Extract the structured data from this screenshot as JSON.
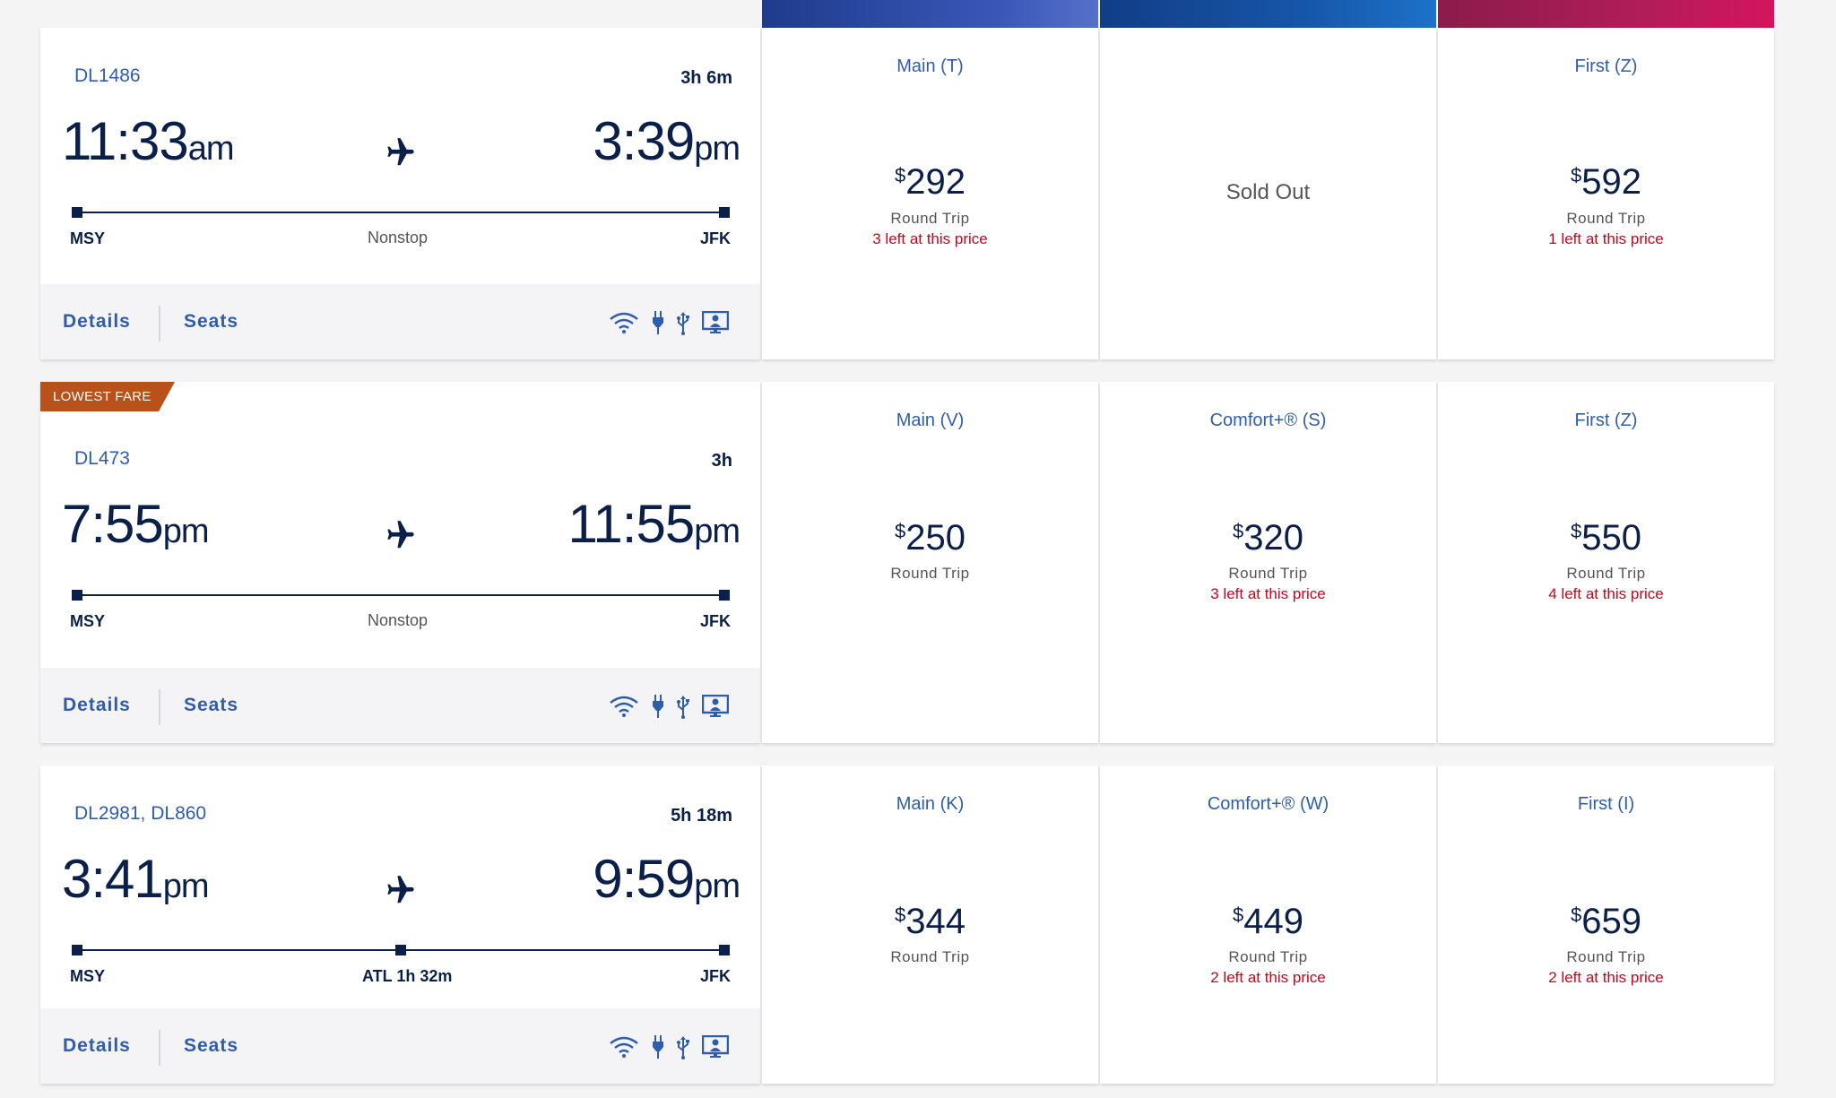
{
  "flights": [
    {
      "flight_number": "DL1486",
      "duration": "3h 6m",
      "depart_time": "11:33",
      "depart_ampm": "am",
      "arrive_time": "3:39",
      "arrive_ampm": "pm",
      "origin": "MSY",
      "destination": "JFK",
      "stop_label": "Nonstop",
      "badge": "",
      "details_label": "Details",
      "seats_label": "Seats",
      "fares": [
        {
          "cabin": "Main (T)",
          "currency": "$",
          "price": "292",
          "trip": "Round Trip",
          "availability": "3 left at this price"
        },
        {
          "cabin": "",
          "status": "Sold Out"
        },
        {
          "cabin": "First (Z)",
          "currency": "$",
          "price": "592",
          "trip": "Round Trip",
          "availability": "1 left at this price"
        }
      ]
    },
    {
      "flight_number": "DL473",
      "duration": "3h",
      "depart_time": "7:55",
      "depart_ampm": "pm",
      "arrive_time": "11:55",
      "arrive_ampm": "pm",
      "origin": "MSY",
      "destination": "JFK",
      "stop_label": "Nonstop",
      "badge": "LOWEST FARE",
      "details_label": "Details",
      "seats_label": "Seats",
      "fares": [
        {
          "cabin": "Main (V)",
          "currency": "$",
          "price": "250",
          "trip": "Round Trip",
          "availability": ""
        },
        {
          "cabin": "Comfort+® (S)",
          "currency": "$",
          "price": "320",
          "trip": "Round Trip",
          "availability": "3 left at this price"
        },
        {
          "cabin": "First (Z)",
          "currency": "$",
          "price": "550",
          "trip": "Round Trip",
          "availability": "4 left at this price"
        }
      ]
    },
    {
      "flight_number": "DL2981, DL860",
      "duration": "5h 18m",
      "depart_time": "3:41",
      "depart_ampm": "pm",
      "arrive_time": "9:59",
      "arrive_ampm": "pm",
      "origin": "MSY",
      "destination": "JFK",
      "stop_label": "ATL 1h 32m",
      "badge": "",
      "details_label": "Details",
      "seats_label": "Seats",
      "fares": [
        {
          "cabin": "Main (K)",
          "currency": "$",
          "price": "344",
          "trip": "Round Trip",
          "availability": ""
        },
        {
          "cabin": "Comfort+® (W)",
          "currency": "$",
          "price": "449",
          "trip": "Round Trip",
          "availability": "2 left at this price"
        },
        {
          "cabin": "First (I)",
          "currency": "$",
          "price": "659",
          "trip": "Round Trip",
          "availability": "2 left at this price"
        }
      ]
    }
  ],
  "amenity_icons": [
    "wifi-icon",
    "power-plug-icon",
    "usb-icon",
    "entertainment-screen-icon"
  ],
  "colors": {
    "navy": "#0b1f4b",
    "link_blue": "#2f5dad",
    "alert_red": "#d0021b",
    "badge_orange": "#b8511b",
    "main_header": "#2e4ca8",
    "comfort_header": "#1656a8",
    "first_header": "#c0185a"
  }
}
